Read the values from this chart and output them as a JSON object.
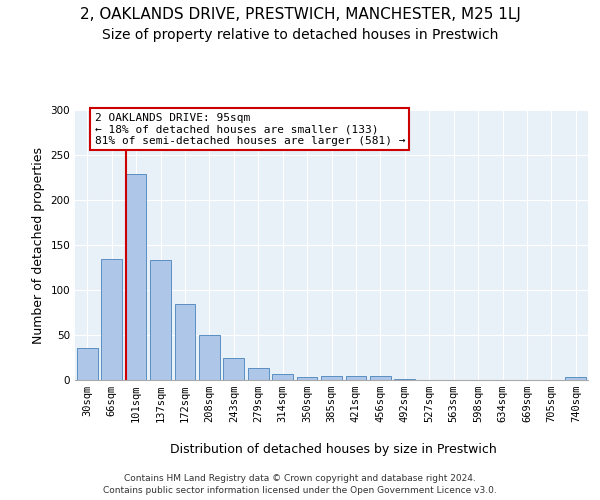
{
  "title_line1": "2, OAKLANDS DRIVE, PRESTWICH, MANCHESTER, M25 1LJ",
  "title_line2": "Size of property relative to detached houses in Prestwich",
  "xlabel": "Distribution of detached houses by size in Prestwich",
  "ylabel": "Number of detached properties",
  "bar_labels": [
    "30sqm",
    "66sqm",
    "101sqm",
    "137sqm",
    "172sqm",
    "208sqm",
    "243sqm",
    "279sqm",
    "314sqm",
    "350sqm",
    "385sqm",
    "421sqm",
    "456sqm",
    "492sqm",
    "527sqm",
    "563sqm",
    "598sqm",
    "634sqm",
    "669sqm",
    "705sqm",
    "740sqm"
  ],
  "bar_values": [
    36,
    135,
    229,
    133,
    85,
    50,
    25,
    13,
    7,
    3,
    4,
    5,
    4,
    1,
    0,
    0,
    0,
    0,
    0,
    0,
    3
  ],
  "bar_color": "#aec6e8",
  "bar_edgecolor": "#5a8fc2",
  "vline_color": "#cc0000",
  "annotation_text": "2 OAKLANDS DRIVE: 95sqm\n← 18% of detached houses are smaller (133)\n81% of semi-detached houses are larger (581) →",
  "annotation_box_edgecolor": "#cc0000",
  "annotation_box_facecolor": "#ffffff",
  "ylim": [
    0,
    300
  ],
  "yticks": [
    0,
    50,
    100,
    150,
    200,
    250,
    300
  ],
  "background_color": "#e8f0f8",
  "footer_text": "Contains HM Land Registry data © Crown copyright and database right 2024.\nContains public sector information licensed under the Open Government Licence v3.0.",
  "title_fontsize": 11,
  "subtitle_fontsize": 10,
  "xlabel_fontsize": 9,
  "ylabel_fontsize": 9,
  "tick_fontsize": 7.5,
  "ann_fontsize": 8
}
